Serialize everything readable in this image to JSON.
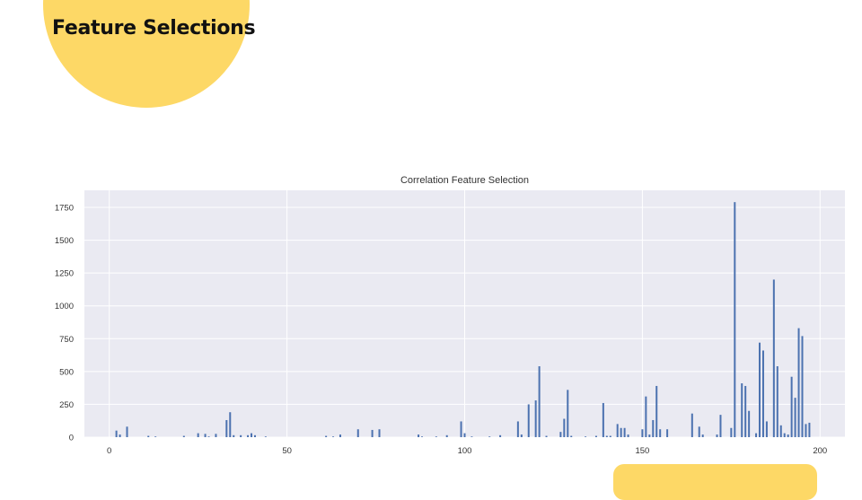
{
  "slide": {
    "title": "Feature Selections",
    "accent_color": "#fdd866"
  },
  "chart_data": {
    "type": "bar",
    "title": "Correlation Feature Selection",
    "xlabel": "",
    "ylabel": "",
    "xlim": [
      -7,
      207
    ],
    "ylim": [
      0,
      1880
    ],
    "xticks": [
      0,
      50,
      100,
      150,
      200
    ],
    "yticks": [
      0,
      250,
      500,
      750,
      1000,
      1250,
      1500,
      1750
    ],
    "grid": true,
    "background_color": "#eaeaf2",
    "bar_color": "#4c72b0",
    "bars": [
      {
        "x": 2,
        "y": 50
      },
      {
        "x": 3,
        "y": 20
      },
      {
        "x": 5,
        "y": 80
      },
      {
        "x": 11,
        "y": 10
      },
      {
        "x": 13,
        "y": 5
      },
      {
        "x": 21,
        "y": 10
      },
      {
        "x": 25,
        "y": 30
      },
      {
        "x": 27,
        "y": 25
      },
      {
        "x": 28,
        "y": 5
      },
      {
        "x": 30,
        "y": 25
      },
      {
        "x": 33,
        "y": 130
      },
      {
        "x": 34,
        "y": 190
      },
      {
        "x": 35,
        "y": 15
      },
      {
        "x": 37,
        "y": 15
      },
      {
        "x": 39,
        "y": 15
      },
      {
        "x": 40,
        "y": 30
      },
      {
        "x": 41,
        "y": 15
      },
      {
        "x": 44,
        "y": 5
      },
      {
        "x": 61,
        "y": 10
      },
      {
        "x": 63,
        "y": 5
      },
      {
        "x": 65,
        "y": 20
      },
      {
        "x": 70,
        "y": 60
      },
      {
        "x": 74,
        "y": 55
      },
      {
        "x": 76,
        "y": 60
      },
      {
        "x": 87,
        "y": 20
      },
      {
        "x": 88,
        "y": 5
      },
      {
        "x": 92,
        "y": 5
      },
      {
        "x": 95,
        "y": 15
      },
      {
        "x": 99,
        "y": 120
      },
      {
        "x": 100,
        "y": 30
      },
      {
        "x": 102,
        "y": 5
      },
      {
        "x": 107,
        "y": 5
      },
      {
        "x": 110,
        "y": 15
      },
      {
        "x": 115,
        "y": 120
      },
      {
        "x": 116,
        "y": 20
      },
      {
        "x": 118,
        "y": 250
      },
      {
        "x": 120,
        "y": 280
      },
      {
        "x": 121,
        "y": 540
      },
      {
        "x": 123,
        "y": 10
      },
      {
        "x": 127,
        "y": 40
      },
      {
        "x": 128,
        "y": 140
      },
      {
        "x": 129,
        "y": 360
      },
      {
        "x": 130,
        "y": 10
      },
      {
        "x": 134,
        "y": 5
      },
      {
        "x": 137,
        "y": 10
      },
      {
        "x": 139,
        "y": 260
      },
      {
        "x": 140,
        "y": 10
      },
      {
        "x": 141,
        "y": 10
      },
      {
        "x": 143,
        "y": 100
      },
      {
        "x": 144,
        "y": 70
      },
      {
        "x": 145,
        "y": 70
      },
      {
        "x": 146,
        "y": 20
      },
      {
        "x": 150,
        "y": 60
      },
      {
        "x": 151,
        "y": 310
      },
      {
        "x": 152,
        "y": 20
      },
      {
        "x": 153,
        "y": 130
      },
      {
        "x": 154,
        "y": 390
      },
      {
        "x": 155,
        "y": 60
      },
      {
        "x": 157,
        "y": 60
      },
      {
        "x": 164,
        "y": 180
      },
      {
        "x": 166,
        "y": 80
      },
      {
        "x": 167,
        "y": 20
      },
      {
        "x": 171,
        "y": 20
      },
      {
        "x": 172,
        "y": 170
      },
      {
        "x": 175,
        "y": 70
      },
      {
        "x": 176,
        "y": 1790
      },
      {
        "x": 178,
        "y": 410
      },
      {
        "x": 179,
        "y": 390
      },
      {
        "x": 180,
        "y": 200
      },
      {
        "x": 182,
        "y": 30
      },
      {
        "x": 183,
        "y": 720
      },
      {
        "x": 184,
        "y": 660
      },
      {
        "x": 185,
        "y": 120
      },
      {
        "x": 187,
        "y": 1200
      },
      {
        "x": 188,
        "y": 540
      },
      {
        "x": 189,
        "y": 90
      },
      {
        "x": 190,
        "y": 30
      },
      {
        "x": 191,
        "y": 20
      },
      {
        "x": 192,
        "y": 460
      },
      {
        "x": 193,
        "y": 300
      },
      {
        "x": 194,
        "y": 830
      },
      {
        "x": 195,
        "y": 770
      },
      {
        "x": 196,
        "y": 100
      },
      {
        "x": 197,
        "y": 110
      }
    ]
  }
}
